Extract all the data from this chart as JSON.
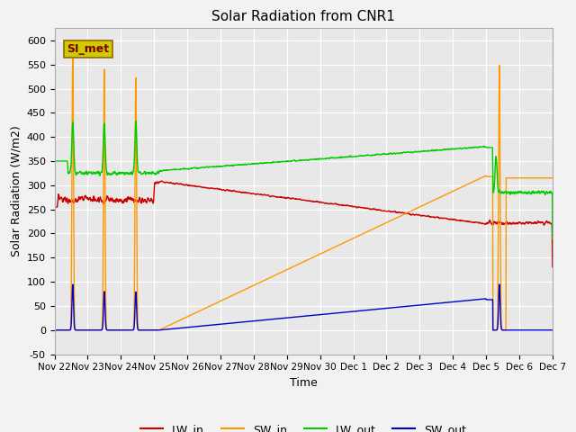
{
  "title": "Solar Radiation from CNR1",
  "xlabel": "Time",
  "ylabel": "Solar Radiation (W/m2)",
  "ylim": [
    -50,
    625
  ],
  "yticks": [
    -50,
    0,
    50,
    100,
    150,
    200,
    250,
    300,
    350,
    400,
    450,
    500,
    550,
    600
  ],
  "plot_bg_color": "#e8e8e8",
  "fig_bg_color": "#f2f2f2",
  "legend_label": "SI_met",
  "legend_box_facecolor": "#cccc00",
  "legend_box_edgecolor": "#996600",
  "legend_text_color": "#800000",
  "colors": {
    "LW_in": "#cc0000",
    "SW_in": "#ff9900",
    "LW_out": "#00cc00",
    "SW_out": "#0000cc"
  },
  "xtick_labels": [
    "Nov 22",
    "Nov 23",
    "Nov 24",
    "Nov 25",
    "Nov 26",
    "Nov 27",
    "Nov 28",
    "Nov 29",
    "Nov 30",
    "Dec 1",
    "Dec 2",
    "Dec 3",
    "Dec 4",
    "Dec 5",
    "Dec 6",
    "Dec 7"
  ]
}
